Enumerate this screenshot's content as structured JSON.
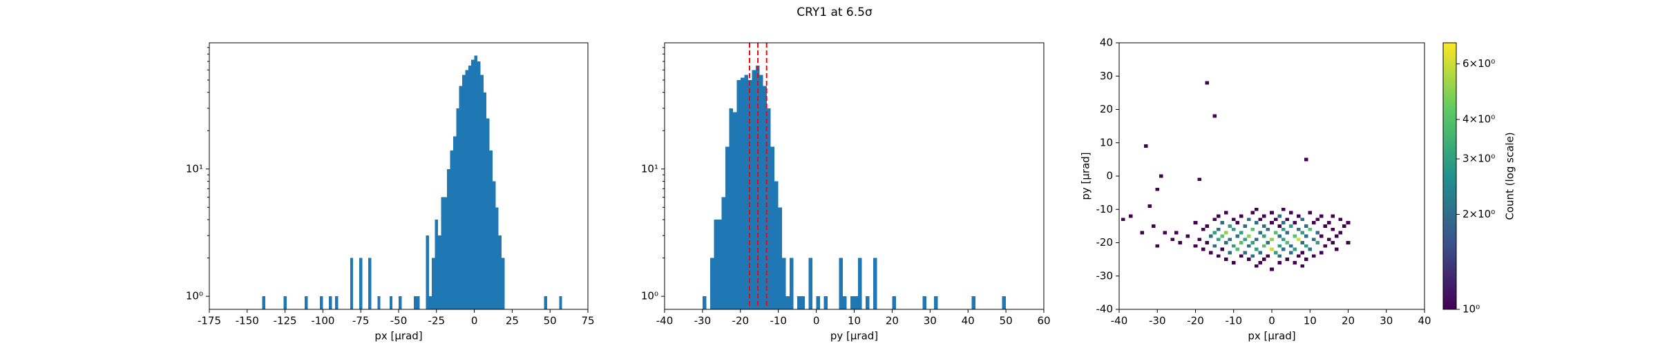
{
  "title": "CRY1 at 6.5σ",
  "chart_data": [
    {
      "type": "histogram",
      "bins": [
        -142,
        -140,
        -138,
        -136,
        -134,
        -132,
        -130,
        -128,
        -126,
        -124,
        -122,
        -120,
        -118,
        -116,
        -114,
        -112,
        -110,
        -108,
        -106,
        -104,
        -102,
        -100,
        -98,
        -96,
        -94,
        -92,
        -90,
        -88,
        -86,
        -84,
        -82,
        -80,
        -78,
        -76,
        -74,
        -72,
        -70,
        -68,
        -66,
        -64,
        -62,
        -60,
        -58,
        -56,
        -54,
        -52,
        -50,
        -48,
        -46,
        -44,
        -42,
        -40,
        -38,
        -36,
        -34,
        -32,
        -30,
        -28,
        -26,
        -24,
        -22,
        -20,
        -18,
        -16,
        -14,
        -12,
        -10,
        -8,
        -6,
        -4,
        -2,
        0,
        2,
        4,
        6,
        8,
        10,
        12,
        14,
        16,
        18,
        20,
        22,
        24,
        26,
        28,
        30,
        32,
        34,
        36,
        38,
        40,
        42,
        44,
        46,
        48,
        50,
        52,
        54,
        56,
        58
      ],
      "values": [
        0,
        1,
        0,
        0,
        0,
        0,
        0,
        0,
        1,
        0,
        0,
        0,
        0,
        0,
        0,
        1,
        0,
        0,
        0,
        0,
        1,
        0,
        0,
        1,
        0,
        1,
        0,
        0,
        0,
        0,
        2,
        0,
        0,
        2,
        0,
        0,
        2,
        0,
        0,
        1,
        0,
        0,
        0,
        1,
        0,
        0,
        1,
        0,
        0,
        0,
        0,
        1,
        1,
        0,
        0,
        3,
        1,
        2,
        4,
        3,
        6,
        6,
        10,
        14,
        18,
        30,
        45,
        55,
        60,
        65,
        72,
        78,
        70,
        55,
        40,
        25,
        14,
        8,
        5,
        3,
        2,
        0,
        0,
        0,
        0,
        0,
        0,
        0,
        0,
        0,
        0,
        0,
        0,
        0,
        1,
        0,
        0,
        0,
        0,
        1
      ],
      "color": "#1f77b4",
      "xlim": [
        -175,
        75
      ],
      "xticks": [
        -175,
        -150,
        -125,
        -100,
        -75,
        -50,
        -25,
        0,
        25,
        50,
        75
      ],
      "log_y": true,
      "ylim": [
        0.79,
        98
      ],
      "yticks": [
        {
          "value": 1,
          "label": "10⁰"
        },
        {
          "value": 10,
          "label": "10¹"
        }
      ],
      "yminor_ticks": [
        2,
        3,
        4,
        5,
        6,
        7,
        8,
        9,
        20,
        30,
        40,
        50,
        60,
        70,
        80,
        90
      ],
      "x_label": "px [μrad]"
    },
    {
      "type": "histogram",
      "bins": [
        -30,
        -29,
        -28,
        -27,
        -26,
        -25,
        -24,
        -23,
        -22,
        -21,
        -20,
        -19,
        -18,
        -17,
        -16,
        -15,
        -14,
        -13,
        -12,
        -11,
        -10,
        -9,
        -8,
        -7,
        -6,
        -5,
        -4,
        -3,
        -2,
        -1,
        0,
        1,
        2,
        3,
        4,
        5,
        6,
        7,
        8,
        9,
        10,
        11,
        12,
        13,
        14,
        15,
        16,
        17,
        18,
        19,
        20,
        21,
        22,
        23,
        24,
        25,
        26,
        27,
        28,
        29,
        30,
        31,
        32,
        33,
        34,
        35,
        36,
        37,
        38,
        39,
        40,
        41,
        42,
        43,
        44,
        45,
        46,
        47,
        48,
        49,
        50,
        51
      ],
      "values": [
        1,
        0,
        2,
        4,
        4,
        6,
        15,
        30,
        28,
        50,
        52,
        55,
        50,
        60,
        65,
        55,
        45,
        30,
        15,
        8,
        5,
        2,
        1,
        2,
        0,
        1,
        1,
        0,
        2,
        0,
        1,
        0,
        1,
        0,
        0,
        0,
        2,
        1,
        0,
        1,
        1,
        2,
        0,
        1,
        0,
        2,
        0,
        0,
        0,
        0,
        1,
        0,
        0,
        0,
        0,
        0,
        0,
        0,
        1,
        0,
        0,
        1,
        0,
        0,
        0,
        0,
        0,
        0,
        0,
        0,
        0,
        1,
        0,
        0,
        0,
        0,
        0,
        0,
        0,
        1,
        0
      ],
      "color": "#1f77b4",
      "vlines": [
        -17.6,
        -15.4,
        -13.1
      ],
      "vline_color": "red",
      "vline_style": "dashed",
      "xlim": [
        -40,
        60
      ],
      "xticks": [
        -40,
        -30,
        -20,
        -10,
        0,
        10,
        20,
        30,
        40,
        50,
        60
      ],
      "log_y": true,
      "ylim": [
        0.79,
        98
      ],
      "yticks": [
        {
          "value": 1,
          "label": "10⁰"
        },
        {
          "value": 10,
          "label": "10¹"
        }
      ],
      "yminor_ticks": [
        2,
        3,
        4,
        5,
        6,
        7,
        8,
        9,
        20,
        30,
        40,
        50,
        60,
        70,
        80,
        90
      ],
      "x_label": "py [μrad]"
    },
    {
      "type": "hist2d",
      "x": [
        -17,
        -15,
        -33,
        9,
        -29,
        -30,
        -19,
        -32,
        -37,
        -39,
        -34,
        -31,
        -28,
        -26,
        -30,
        -4,
        3,
        -12,
        -5,
        0,
        5,
        10,
        -14,
        -8,
        -2,
        2,
        7,
        13,
        16,
        -15,
        -10,
        -6,
        -3,
        1,
        4,
        8,
        12,
        18,
        -20,
        -13,
        -9,
        -4,
        0,
        3,
        6,
        11,
        15,
        20,
        -17,
        -11,
        -7,
        -2,
        2,
        5,
        9,
        14,
        19,
        -18,
        -14,
        -10,
        -5,
        -1,
        3,
        7,
        10,
        16,
        -25,
        -15,
        -12,
        -8,
        -3,
        1,
        4,
        8,
        12,
        18,
        -22,
        -16,
        -13,
        -9,
        -6,
        -2,
        2,
        6,
        9,
        13,
        17,
        -19,
        -14,
        -11,
        -7,
        -4,
        0,
        3,
        7,
        11,
        15,
        -24,
        -17,
        -12,
        -8,
        -5,
        -1,
        4,
        8,
        12,
        16,
        20,
        -20,
        -15,
        -10,
        -6,
        -2,
        2,
        5,
        9,
        14,
        -18,
        -13,
        -9,
        -4,
        0,
        3,
        6,
        10,
        17,
        -16,
        -11,
        -7,
        -3,
        1,
        5,
        8,
        13,
        -14,
        -8,
        -5,
        -1,
        2,
        7,
        11,
        -12,
        -6,
        -2,
        4,
        9,
        -10,
        -3,
        2,
        6,
        -4,
        8,
        0
      ],
      "y": [
        28,
        18,
        9,
        5,
        0,
        -4,
        -1,
        -9,
        -12,
        -13,
        -17,
        -15,
        -17,
        -19,
        -21,
        -10,
        -10,
        -11,
        -11,
        -11,
        -11,
        -11,
        -12,
        -12,
        -12,
        -12,
        -12,
        -12,
        -12,
        -13,
        -13,
        -13,
        -13,
        -13,
        -13,
        -13,
        -13,
        -13,
        -14,
        -14,
        -14,
        -14,
        -14,
        -14,
        -14,
        -14,
        -14,
        -14,
        -15,
        -15,
        -15,
        -15,
        -15,
        -15,
        -15,
        -15,
        -15,
        -16,
        -16,
        -16,
        -16,
        -16,
        -16,
        -16,
        -16,
        -16,
        -17,
        -17,
        -17,
        -17,
        -17,
        -17,
        -17,
        -17,
        -17,
        -17,
        -18,
        -18,
        -18,
        -18,
        -18,
        -18,
        -18,
        -18,
        -18,
        -18,
        -18,
        -19,
        -19,
        -19,
        -19,
        -19,
        -19,
        -19,
        -19,
        -19,
        -19,
        -20,
        -20,
        -20,
        -20,
        -20,
        -20,
        -20,
        -20,
        -20,
        -20,
        -20,
        -21,
        -21,
        -21,
        -21,
        -21,
        -21,
        -21,
        -21,
        -21,
        -22,
        -22,
        -22,
        -22,
        -22,
        -22,
        -22,
        -22,
        -22,
        -23,
        -23,
        -23,
        -23,
        -23,
        -23,
        -23,
        -23,
        -24,
        -24,
        -24,
        -24,
        -24,
        -24,
        -24,
        -25,
        -25,
        -25,
        -25,
        -25,
        -26,
        -26,
        -26,
        -26,
        -27,
        -27,
        -28
      ],
      "values": [
        1,
        1,
        1,
        1,
        1,
        1,
        1,
        1,
        1,
        1,
        1,
        1,
        1,
        1,
        1,
        1,
        1,
        1,
        1,
        1,
        1,
        1,
        1,
        1,
        1,
        2,
        1,
        1,
        1,
        1,
        1,
        2,
        1,
        1,
        1,
        2,
        1,
        1,
        1,
        2,
        1,
        2,
        1,
        2,
        1,
        1,
        1,
        1,
        1,
        3,
        2,
        2,
        1,
        3,
        2,
        1,
        1,
        1,
        2,
        3,
        4,
        2,
        3,
        2,
        4,
        1,
        1,
        3,
        5,
        3,
        2,
        4,
        2,
        3,
        2,
        1,
        1,
        2,
        4,
        2,
        5,
        3,
        2,
        4,
        2,
        1,
        1,
        1,
        3,
        2,
        3,
        2,
        5,
        3,
        6,
        2,
        1,
        1,
        1,
        2,
        4,
        3,
        2,
        4,
        2,
        3,
        1,
        1,
        1,
        2,
        3,
        2,
        4,
        3,
        2,
        3,
        1,
        1,
        1,
        4,
        3,
        6,
        2,
        3,
        2,
        1,
        1,
        2,
        2,
        2,
        3,
        2,
        1,
        1,
        1,
        1,
        2,
        1,
        2,
        1,
        1,
        1,
        1,
        1,
        1,
        1,
        1,
        1,
        1,
        1,
        1,
        1,
        1
      ],
      "bin_size": 1,
      "xlim": [
        -40,
        40
      ],
      "xticks": [
        -40,
        -30,
        -20,
        -10,
        0,
        10,
        20,
        30,
        40
      ],
      "ylim": [
        -40,
        40
      ],
      "yticks": [
        -40,
        -30,
        -20,
        -10,
        0,
        10,
        20,
        30,
        40
      ],
      "x_label": "px [μrad]",
      "y_label": "py [μrad]",
      "colormap": "viridis",
      "colorbar": {
        "label": "Count (log scale)",
        "log": true,
        "lim": [
          1,
          7
        ],
        "ticks": [
          {
            "value": 1,
            "label": "10⁰"
          },
          {
            "value": 2,
            "label": "2×10⁰"
          },
          {
            "value": 3,
            "label": "3×10⁰"
          },
          {
            "value": 4,
            "label": "4×10⁰"
          },
          {
            "value": 6,
            "label": "6×10⁰"
          }
        ]
      }
    }
  ]
}
